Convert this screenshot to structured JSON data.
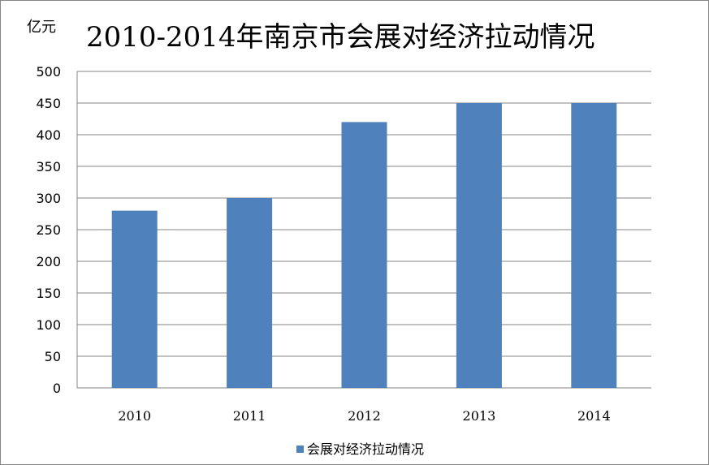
{
  "chart_data": {
    "type": "bar",
    "title": "2010-2014年南京市会展对经济拉动情况",
    "ylabel": "亿元",
    "xlabel": "",
    "categories": [
      "2010",
      "2011",
      "2012",
      "2013",
      "2014"
    ],
    "series": [
      {
        "name": "会展对经济拉动情况",
        "values": [
          280,
          300,
          420,
          450,
          450
        ],
        "color": "#4F81BD"
      }
    ],
    "ylim": [
      0,
      500
    ],
    "yticks": [
      "0",
      "50",
      "100",
      "150",
      "200",
      "250",
      "300",
      "350",
      "400",
      "450",
      "500"
    ],
    "grid": true,
    "legend_position": "bottom"
  }
}
